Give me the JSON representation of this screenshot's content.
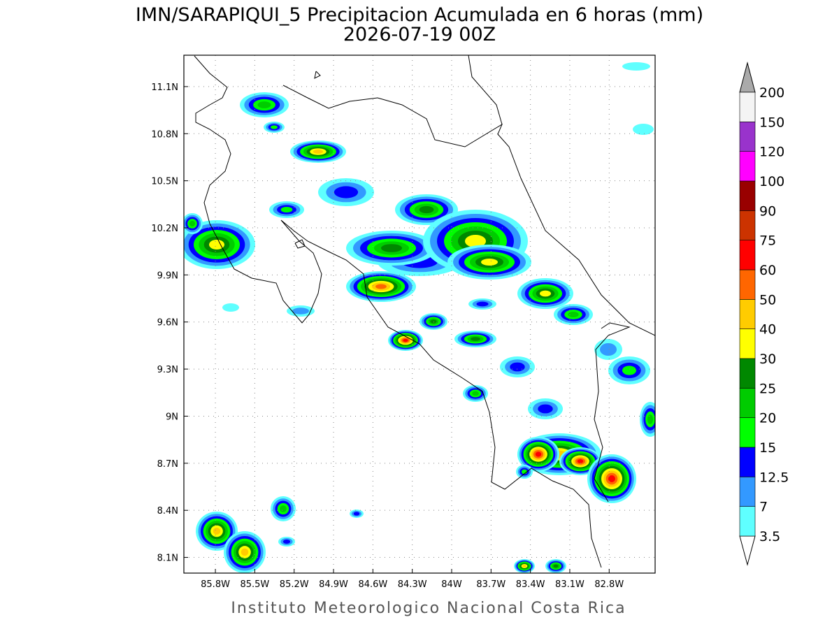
{
  "header": {
    "title": "IMN/SARAPIQUI_5 Precipitacion Acumulada en 6 horas (mm)",
    "subtitle": "2026-07-19 00Z"
  },
  "map": {
    "lon_range": [
      -86.04,
      -82.45
    ],
    "lat_range": [
      8.0,
      11.3
    ],
    "lon_ticks": [
      {
        "value": -85.8,
        "label": "85.8W"
      },
      {
        "value": -85.5,
        "label": "85.5W"
      },
      {
        "value": -85.2,
        "label": "85.2W"
      },
      {
        "value": -84.9,
        "label": "84.9W"
      },
      {
        "value": -84.6,
        "label": "84.6W"
      },
      {
        "value": -84.3,
        "label": "84.3W"
      },
      {
        "value": -84.0,
        "label": "84W"
      },
      {
        "value": -83.7,
        "label": "83.7W"
      },
      {
        "value": -83.4,
        "label": "83.4W"
      },
      {
        "value": -83.1,
        "label": "83.1W"
      },
      {
        "value": -82.8,
        "label": "82.8W"
      }
    ],
    "lat_ticks": [
      {
        "value": 11.1,
        "label": "11.1N"
      },
      {
        "value": 10.8,
        "label": "10.8N"
      },
      {
        "value": 10.5,
        "label": "10.5N"
      },
      {
        "value": 10.2,
        "label": "10.2N"
      },
      {
        "value": 9.9,
        "label": "9.9N"
      },
      {
        "value": 9.6,
        "label": "9.6N"
      },
      {
        "value": 9.3,
        "label": "9.3N"
      },
      {
        "value": 9.0,
        "label": "9N"
      },
      {
        "value": 8.7,
        "label": "8.7N"
      },
      {
        "value": 8.4,
        "label": "8.4N"
      },
      {
        "value": 8.1,
        "label": "8.1N"
      }
    ]
  },
  "legend": {
    "levels": [
      3.5,
      7,
      12.5,
      15,
      20,
      25,
      30,
      40,
      50,
      60,
      75,
      90,
      100,
      120,
      150,
      200
    ],
    "colors": [
      "#ffffff",
      "#5fffff",
      "#3399ff",
      "#0000ff",
      "#00ff00",
      "#00cc00",
      "#008800",
      "#ffff00",
      "#ffcc00",
      "#ff6600",
      "#ff0000",
      "#cc3300",
      "#990000",
      "#ff00ff",
      "#9933cc",
      "#f4f4f4",
      "#aaaaaa"
    ]
  },
  "footer": "Instituto Meteorologico Nacional Costa Rica"
}
